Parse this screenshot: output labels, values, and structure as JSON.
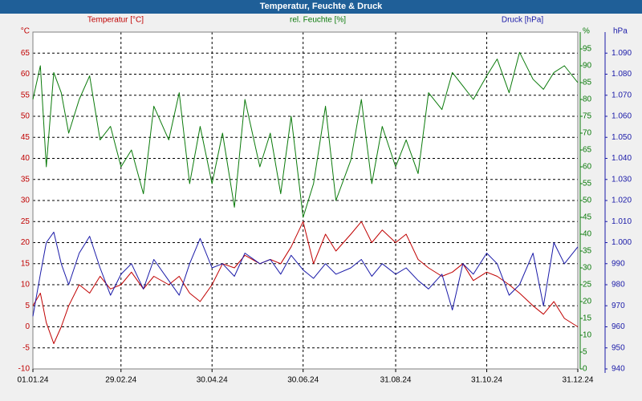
{
  "window": {
    "title": "Temperatur, Feuchte & Druck"
  },
  "chart_data": {
    "type": "line",
    "title": "Temperatur, Feuchte & Druck",
    "xlabel": "",
    "x_tick_labels": [
      "01.01.24",
      "29.02.24",
      "30.04.24",
      "30.06.24",
      "31.08.24",
      "31.10.24",
      "31.12.24"
    ],
    "x_range": [
      "01.01.24",
      "31.12.24"
    ],
    "grid": true,
    "axes": {
      "temperature": {
        "label": "Temperatur [°C]",
        "unit": "°C",
        "range": [
          -10,
          70
        ],
        "ticks": [
          -10,
          -5,
          0,
          5,
          10,
          15,
          20,
          25,
          30,
          35,
          40,
          45,
          50,
          55,
          60,
          65
        ],
        "color": "#c00000",
        "position": "left"
      },
      "humidity": {
        "label": "rel. Feuchte [%]",
        "unit": "%",
        "range": [
          0,
          100
        ],
        "ticks": [
          0,
          5,
          10,
          15,
          20,
          25,
          30,
          35,
          40,
          45,
          50,
          55,
          60,
          65,
          70,
          75,
          80,
          85,
          90,
          95
        ],
        "color": "#0a7a0a",
        "position": "right-inner"
      },
      "pressure": {
        "label": "Druck [hPa]",
        "unit": "hPa",
        "range": [
          940,
          1100
        ],
        "ticks": [
          "940",
          "950",
          "960",
          "970",
          "980",
          "990",
          "1.000",
          "1.010",
          "1.020",
          "1.030",
          "1.040",
          "1.050",
          "1.060",
          "1.070",
          "1.080",
          "1.090"
        ],
        "color": "#1a1aa8",
        "position": "right-outer"
      }
    },
    "series": [
      {
        "name": "Temperatur [°C]",
        "axis": "temperature",
        "color": "#c00000",
        "points": [
          [
            "01.01.24",
            5
          ],
          [
            "06.01.24",
            8
          ],
          [
            "10.01.24",
            1
          ],
          [
            "15.01.24",
            -4
          ],
          [
            "20.01.24",
            0
          ],
          [
            "25.01.24",
            5
          ],
          [
            "01.02.24",
            10
          ],
          [
            "08.02.24",
            8
          ],
          [
            "15.02.24",
            12
          ],
          [
            "22.02.24",
            9
          ],
          [
            "29.02.24",
            10
          ],
          [
            "07.03.24",
            13
          ],
          [
            "15.03.24",
            9
          ],
          [
            "22.03.24",
            12
          ],
          [
            "01.04.24",
            10
          ],
          [
            "08.04.24",
            12
          ],
          [
            "15.04.24",
            8
          ],
          [
            "22.04.24",
            6
          ],
          [
            "30.04.24",
            10
          ],
          [
            "07.05.24",
            15
          ],
          [
            "15.05.24",
            14
          ],
          [
            "22.05.24",
            17
          ],
          [
            "01.06.24",
            15
          ],
          [
            "08.06.24",
            16
          ],
          [
            "15.06.24",
            15
          ],
          [
            "22.06.24",
            19
          ],
          [
            "30.06.24",
            25
          ],
          [
            "07.07.24",
            15
          ],
          [
            "15.07.24",
            22
          ],
          [
            "22.07.24",
            18
          ],
          [
            "01.08.24",
            22
          ],
          [
            "08.08.24",
            25
          ],
          [
            "15.08.24",
            20
          ],
          [
            "22.08.24",
            23
          ],
          [
            "31.08.24",
            20
          ],
          [
            "07.09.24",
            22
          ],
          [
            "15.09.24",
            16
          ],
          [
            "22.09.24",
            14
          ],
          [
            "01.10.24",
            12
          ],
          [
            "08.10.24",
            13
          ],
          [
            "15.10.24",
            15
          ],
          [
            "22.10.24",
            11
          ],
          [
            "31.10.24",
            13
          ],
          [
            "07.11.24",
            12
          ],
          [
            "15.11.24",
            10
          ],
          [
            "22.11.24",
            8
          ],
          [
            "01.12.24",
            5
          ],
          [
            "08.12.24",
            3
          ],
          [
            "15.12.24",
            6
          ],
          [
            "22.12.24",
            2
          ],
          [
            "31.12.24",
            0
          ]
        ]
      },
      {
        "name": "rel. Feuchte [%]",
        "axis": "humidity",
        "color": "#0a7a0a",
        "points": [
          [
            "01.01.24",
            80
          ],
          [
            "06.01.24",
            90
          ],
          [
            "10.01.24",
            60
          ],
          [
            "15.01.24",
            88
          ],
          [
            "20.01.24",
            82
          ],
          [
            "25.01.24",
            70
          ],
          [
            "01.02.24",
            80
          ],
          [
            "08.02.24",
            87
          ],
          [
            "15.02.24",
            68
          ],
          [
            "22.02.24",
            72
          ],
          [
            "29.02.24",
            60
          ],
          [
            "07.03.24",
            65
          ],
          [
            "15.03.24",
            52
          ],
          [
            "22.03.24",
            78
          ],
          [
            "01.04.24",
            68
          ],
          [
            "08.04.24",
            82
          ],
          [
            "15.04.24",
            55
          ],
          [
            "22.04.24",
            72
          ],
          [
            "30.04.24",
            55
          ],
          [
            "07.05.24",
            70
          ],
          [
            "15.05.24",
            48
          ],
          [
            "22.05.24",
            80
          ],
          [
            "01.06.24",
            60
          ],
          [
            "08.06.24",
            70
          ],
          [
            "15.06.24",
            52
          ],
          [
            "22.06.24",
            75
          ],
          [
            "30.06.24",
            45
          ],
          [
            "07.07.24",
            55
          ],
          [
            "15.07.24",
            78
          ],
          [
            "22.07.24",
            50
          ],
          [
            "01.08.24",
            62
          ],
          [
            "08.08.24",
            80
          ],
          [
            "15.08.24",
            55
          ],
          [
            "22.08.24",
            72
          ],
          [
            "31.08.24",
            60
          ],
          [
            "07.09.24",
            68
          ],
          [
            "15.09.24",
            58
          ],
          [
            "22.09.24",
            82
          ],
          [
            "01.10.24",
            77
          ],
          [
            "08.10.24",
            88
          ],
          [
            "15.10.24",
            84
          ],
          [
            "22.10.24",
            80
          ],
          [
            "31.10.24",
            87
          ],
          [
            "07.11.24",
            92
          ],
          [
            "15.11.24",
            82
          ],
          [
            "22.11.24",
            94
          ],
          [
            "01.12.24",
            86
          ],
          [
            "08.12.24",
            83
          ],
          [
            "15.12.24",
            88
          ],
          [
            "22.12.24",
            90
          ],
          [
            "31.12.24",
            85
          ]
        ]
      },
      {
        "name": "Druck [hPa]",
        "axis": "pressure",
        "color": "#1a1aa8",
        "points": [
          [
            "01.01.24",
            965
          ],
          [
            "06.01.24",
            985
          ],
          [
            "10.01.24",
            1000
          ],
          [
            "15.01.24",
            1005
          ],
          [
            "20.01.24",
            990
          ],
          [
            "25.01.24",
            980
          ],
          [
            "01.02.24",
            995
          ],
          [
            "08.02.24",
            1003
          ],
          [
            "15.02.24",
            988
          ],
          [
            "22.02.24",
            975
          ],
          [
            "29.02.24",
            985
          ],
          [
            "07.03.24",
            990
          ],
          [
            "15.03.24",
            978
          ],
          [
            "22.03.24",
            992
          ],
          [
            "01.04.24",
            982
          ],
          [
            "08.04.24",
            975
          ],
          [
            "15.04.24",
            990
          ],
          [
            "22.04.24",
            1002
          ],
          [
            "30.04.24",
            988
          ],
          [
            "07.05.24",
            990
          ],
          [
            "15.05.24",
            984
          ],
          [
            "22.05.24",
            995
          ],
          [
            "01.06.24",
            990
          ],
          [
            "08.06.24",
            992
          ],
          [
            "15.06.24",
            985
          ],
          [
            "22.06.24",
            994
          ],
          [
            "30.06.24",
            987
          ],
          [
            "07.07.24",
            983
          ],
          [
            "15.07.24",
            990
          ],
          [
            "22.07.24",
            985
          ],
          [
            "01.08.24",
            988
          ],
          [
            "08.08.24",
            992
          ],
          [
            "15.08.24",
            984
          ],
          [
            "22.08.24",
            990
          ],
          [
            "31.08.24",
            985
          ],
          [
            "07.09.24",
            988
          ],
          [
            "15.09.24",
            982
          ],
          [
            "22.09.24",
            978
          ],
          [
            "01.10.24",
            985
          ],
          [
            "08.10.24",
            968
          ],
          [
            "15.10.24",
            990
          ],
          [
            "22.10.24",
            985
          ],
          [
            "31.10.24",
            995
          ],
          [
            "07.11.24",
            990
          ],
          [
            "15.11.24",
            975
          ],
          [
            "22.11.24",
            980
          ],
          [
            "01.12.24",
            995
          ],
          [
            "08.12.24",
            970
          ],
          [
            "15.12.24",
            1000
          ],
          [
            "22.12.24",
            990
          ],
          [
            "31.12.24",
            998
          ]
        ]
      }
    ]
  }
}
